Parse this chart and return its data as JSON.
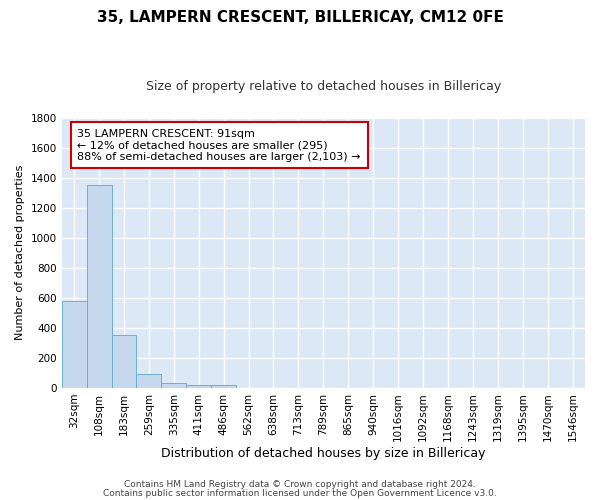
{
  "title": "35, LAMPERN CRESCENT, BILLERICAY, CM12 0FE",
  "subtitle": "Size of property relative to detached houses in Billericay",
  "xlabel": "Distribution of detached houses by size in Billericay",
  "ylabel": "Number of detached properties",
  "categories": [
    "32sqm",
    "108sqm",
    "183sqm",
    "259sqm",
    "335sqm",
    "411sqm",
    "486sqm",
    "562sqm",
    "638sqm",
    "713sqm",
    "789sqm",
    "865sqm",
    "940sqm",
    "1016sqm",
    "1092sqm",
    "1168sqm",
    "1243sqm",
    "1319sqm",
    "1395sqm",
    "1470sqm",
    "1546sqm"
  ],
  "values": [
    580,
    1350,
    350,
    95,
    30,
    20,
    20,
    0,
    0,
    0,
    0,
    0,
    0,
    0,
    0,
    0,
    0,
    0,
    0,
    0,
    0
  ],
  "bar_color": "#c5d8ee",
  "bar_edge_color": "#6aaed6",
  "background_color": "#dce8f5",
  "grid_color": "#ffffff",
  "fig_background": "#ffffff",
  "ylim": [
    0,
    1800
  ],
  "yticks": [
    0,
    200,
    400,
    600,
    800,
    1000,
    1200,
    1400,
    1600,
    1800
  ],
  "annotation_text": "35 LAMPERN CRESCENT: 91sqm\n← 12% of detached houses are smaller (295)\n88% of semi-detached houses are larger (2,103) →",
  "annotation_box_facecolor": "#ffffff",
  "annotation_border_color": "#cc0000",
  "footnote1": "Contains HM Land Registry data © Crown copyright and database right 2024.",
  "footnote2": "Contains public sector information licensed under the Open Government Licence v3.0.",
  "title_fontsize": 11,
  "subtitle_fontsize": 9,
  "xlabel_fontsize": 9,
  "ylabel_fontsize": 8,
  "tick_fontsize": 7.5,
  "annotation_fontsize": 8,
  "footnote_fontsize": 6.5
}
